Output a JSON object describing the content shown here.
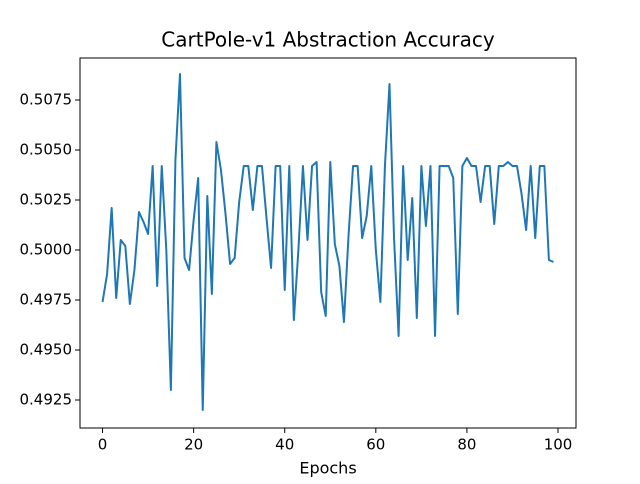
{
  "chart_data": {
    "type": "line",
    "title": "CartPole-v1 Abstraction Accuracy",
    "x_label": "Epochs",
    "x": [
      0,
      1,
      2,
      3,
      4,
      5,
      6,
      7,
      8,
      9,
      10,
      11,
      12,
      13,
      14,
      15,
      16,
      17,
      18,
      19,
      20,
      21,
      22,
      23,
      24,
      25,
      26,
      27,
      28,
      29,
      30,
      31,
      32,
      33,
      34,
      35,
      36,
      37,
      38,
      39,
      40,
      41,
      42,
      43,
      44,
      45,
      46,
      47,
      48,
      49,
      50,
      51,
      52,
      53,
      54,
      55,
      56,
      57,
      58,
      59,
      60,
      61,
      62,
      63,
      64,
      65,
      66,
      67,
      68,
      69,
      70,
      71,
      72,
      73,
      74,
      75,
      76,
      77,
      78,
      79,
      80,
      81,
      82,
      83,
      84,
      85,
      86,
      87,
      88,
      89,
      90,
      91,
      92,
      93,
      94,
      95,
      96,
      97,
      98,
      99
    ],
    "values": [
      0.4974,
      0.4988,
      0.5021,
      0.4976,
      0.5005,
      0.5002,
      0.4973,
      0.499,
      0.5019,
      0.5014,
      0.5008,
      0.5042,
      0.4982,
      0.5042,
      0.5,
      0.493,
      0.5045,
      0.5088,
      0.4996,
      0.499,
      0.5015,
      0.5036,
      0.492,
      0.5027,
      0.4978,
      0.5054,
      0.504,
      0.5018,
      0.4993,
      0.4996,
      0.5024,
      0.5042,
      0.5042,
      0.502,
      0.5042,
      0.5042,
      0.5016,
      0.4991,
      0.5042,
      0.5042,
      0.498,
      0.5042,
      0.4965,
      0.5,
      0.5042,
      0.5005,
      0.5042,
      0.5044,
      0.4979,
      0.4967,
      0.5044,
      0.5003,
      0.4992,
      0.4964,
      0.5007,
      0.5042,
      0.5042,
      0.5006,
      0.5017,
      0.5042,
      0.5,
      0.4974,
      0.5042,
      0.5083,
      0.5006,
      0.4957,
      0.5042,
      0.4995,
      0.5026,
      0.4966,
      0.5042,
      0.5012,
      0.5042,
      0.4957,
      0.5042,
      0.5042,
      0.5042,
      0.5036,
      0.4968,
      0.5042,
      0.5046,
      0.5042,
      0.5042,
      0.5024,
      0.5042,
      0.5042,
      0.5013,
      0.5042,
      0.5042,
      0.5044,
      0.5042,
      0.5042,
      0.5028,
      0.501,
      0.5042,
      0.5006,
      0.5042,
      0.5042,
      0.4995,
      0.4994
    ],
    "color": "#1f77b4",
    "xlim": [
      -4.95,
      103.95
    ],
    "xticks": [
      0,
      20,
      40,
      60,
      80,
      100
    ],
    "ylim": [
      0.4911,
      0.5096
    ],
    "yticks": [
      0.4925,
      {
        "value": 0.495,
        "label": "0.4950"
      },
      0.4975,
      {
        "value": 0.5,
        "label": "0.5000"
      },
      0.5025,
      {
        "value": 0.505,
        "label": "0.5050"
      },
      0.5075
    ]
  }
}
